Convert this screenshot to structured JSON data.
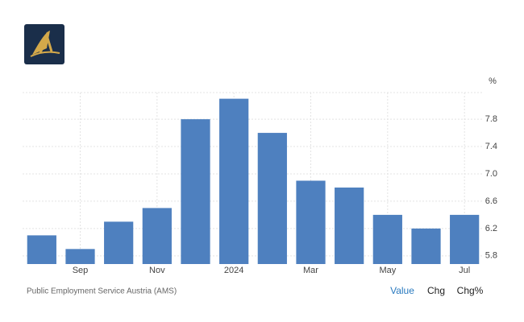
{
  "chart_data": {
    "type": "bar",
    "unit": "%",
    "source": "Public Employment Service Austria (AMS)",
    "buttons": [
      "Value",
      "Chg",
      "Chg%"
    ],
    "categories": [
      null,
      "Sep",
      null,
      "Nov",
      null,
      "2024",
      null,
      "Mar",
      null,
      "May",
      null,
      "Jul"
    ],
    "values": [
      6.1,
      5.9,
      6.3,
      6.5,
      7.8,
      8.1,
      7.6,
      6.9,
      6.8,
      6.4,
      6.2,
      6.4
    ],
    "color": "#4e80bf",
    "ylim": [
      5.68,
      8.19
    ],
    "yticks": [
      5.8,
      6.2,
      6.6,
      {
        "value": 7,
        "label": "7.0"
      },
      7.4,
      7.8
    ],
    "grid": true
  }
}
